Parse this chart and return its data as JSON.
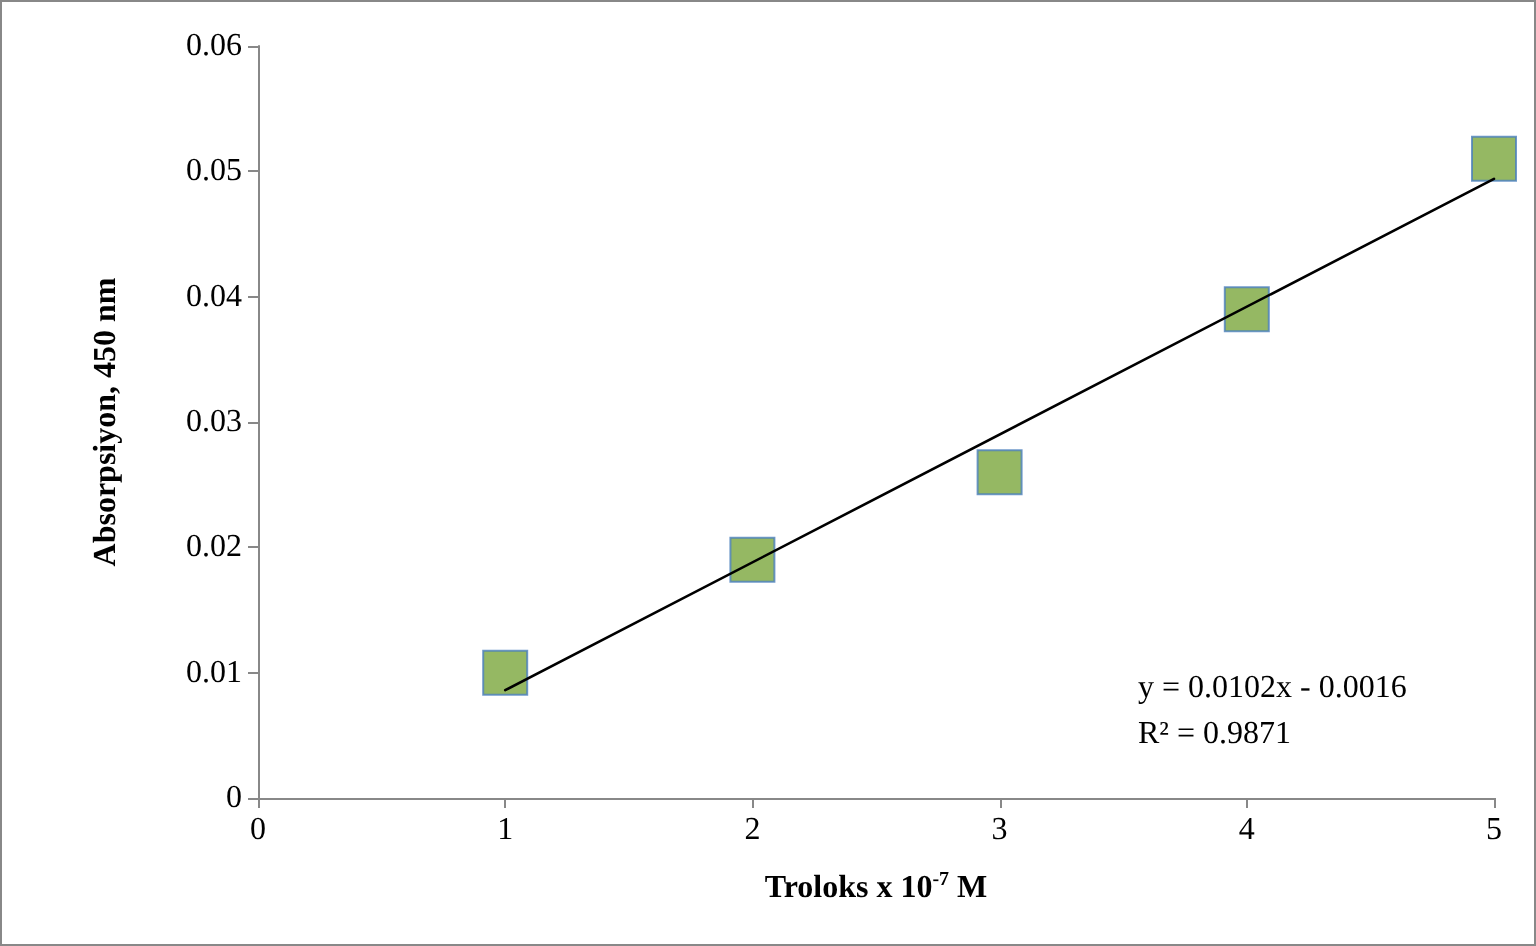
{
  "chart_data": {
    "type": "scatter",
    "xlabel": "Troloks x 10$^{-7}$ M",
    "ylabel": "Absorpsiyon, 450 nm",
    "x": [
      1,
      2,
      3,
      4,
      5
    ],
    "marker": "square",
    "grid": false,
    "xlim": [
      0,
      5
    ],
    "xticks": [
      0,
      1,
      2,
      3,
      4,
      5
    ],
    "ylim": [
      0,
      0.06
    ],
    "yticks": [
      0,
      0.01,
      0.02,
      0.03,
      0.04,
      0.05,
      0.06
    ],
    "annotations": [
      "y = 0.0102x - 0.0016",
      "R² = 0.9871"
    ],
    "series": [
      {
        "color": "#7aa63c",
        "values": [
          0.01,
          0.019,
          0.026,
          0.039,
          0.051
        ]
      },
      {
        "type": "line",
        "color": "#000000",
        "x": [
          1,
          5
        ],
        "values": [
          0.0086,
          0.0494
        ],
        "line_style": "solid",
        "marker": "none"
      }
    ]
  }
}
